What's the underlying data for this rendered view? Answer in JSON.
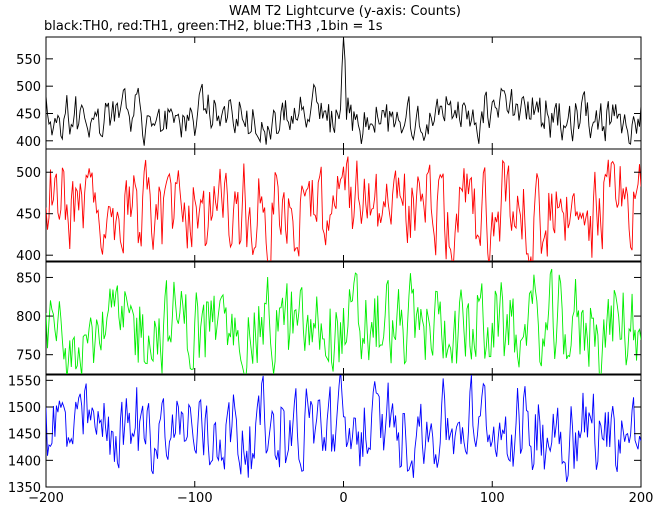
{
  "title": "WAM T2 Lightcurve (y-axis: Counts)",
  "subtitle": "black:TH0, red:TH1, green:TH2, blue:TH3 ,1bin = 1s",
  "chart_data": {
    "type": "line",
    "title": "WAM T2 Lightcurve (y-axis: Counts)",
    "subtitle": "black:TH0, red:TH1, green:TH2, blue:TH3 ,1bin = 1s",
    "x_range": [
      -200,
      200
    ],
    "x_ticks": [
      -200,
      -100,
      0,
      100,
      200
    ],
    "x_tick_labels": [
      "−200",
      "−100",
      "0",
      "100",
      "200"
    ],
    "bin_seconds": 1,
    "grid": false,
    "panels": [
      {
        "name": "TH0",
        "color": "#000000",
        "ylim": [
          385,
          590
        ],
        "yticks": [
          400,
          450,
          500,
          550
        ],
        "ytick_labels": [
          "400",
          "450",
          "500",
          "550"
        ],
        "mean": 445,
        "amplitude": 40,
        "spikes": [
          {
            "x": 0,
            "y": 590
          },
          {
            "x": 1,
            "y": 548
          },
          {
            "x": -1,
            "y": 535
          }
        ]
      },
      {
        "name": "TH1",
        "color": "#ff0000",
        "ylim": [
          393,
          528
        ],
        "yticks": [
          400,
          450,
          500
        ],
        "ytick_labels": [
          "400",
          "450",
          "500"
        ],
        "mean": 455,
        "amplitude": 52,
        "spikes": []
      },
      {
        "name": "TH2",
        "color": "#00ee00",
        "ylim": [
          725,
          870
        ],
        "yticks": [
          750,
          800,
          850
        ],
        "ytick_labels": [
          "750",
          "800",
          "850"
        ],
        "mean": 785,
        "amplitude": 55,
        "spikes": []
      },
      {
        "name": "TH3",
        "color": "#0000ff",
        "ylim": [
          1350,
          1560
        ],
        "yticks": [
          1350,
          1400,
          1450,
          1500,
          1550
        ],
        "ytick_labels": [
          "1350",
          "1400",
          "1450",
          "1500",
          "1550"
        ],
        "mean": 1460,
        "amplitude": 75,
        "spikes": []
      }
    ]
  }
}
